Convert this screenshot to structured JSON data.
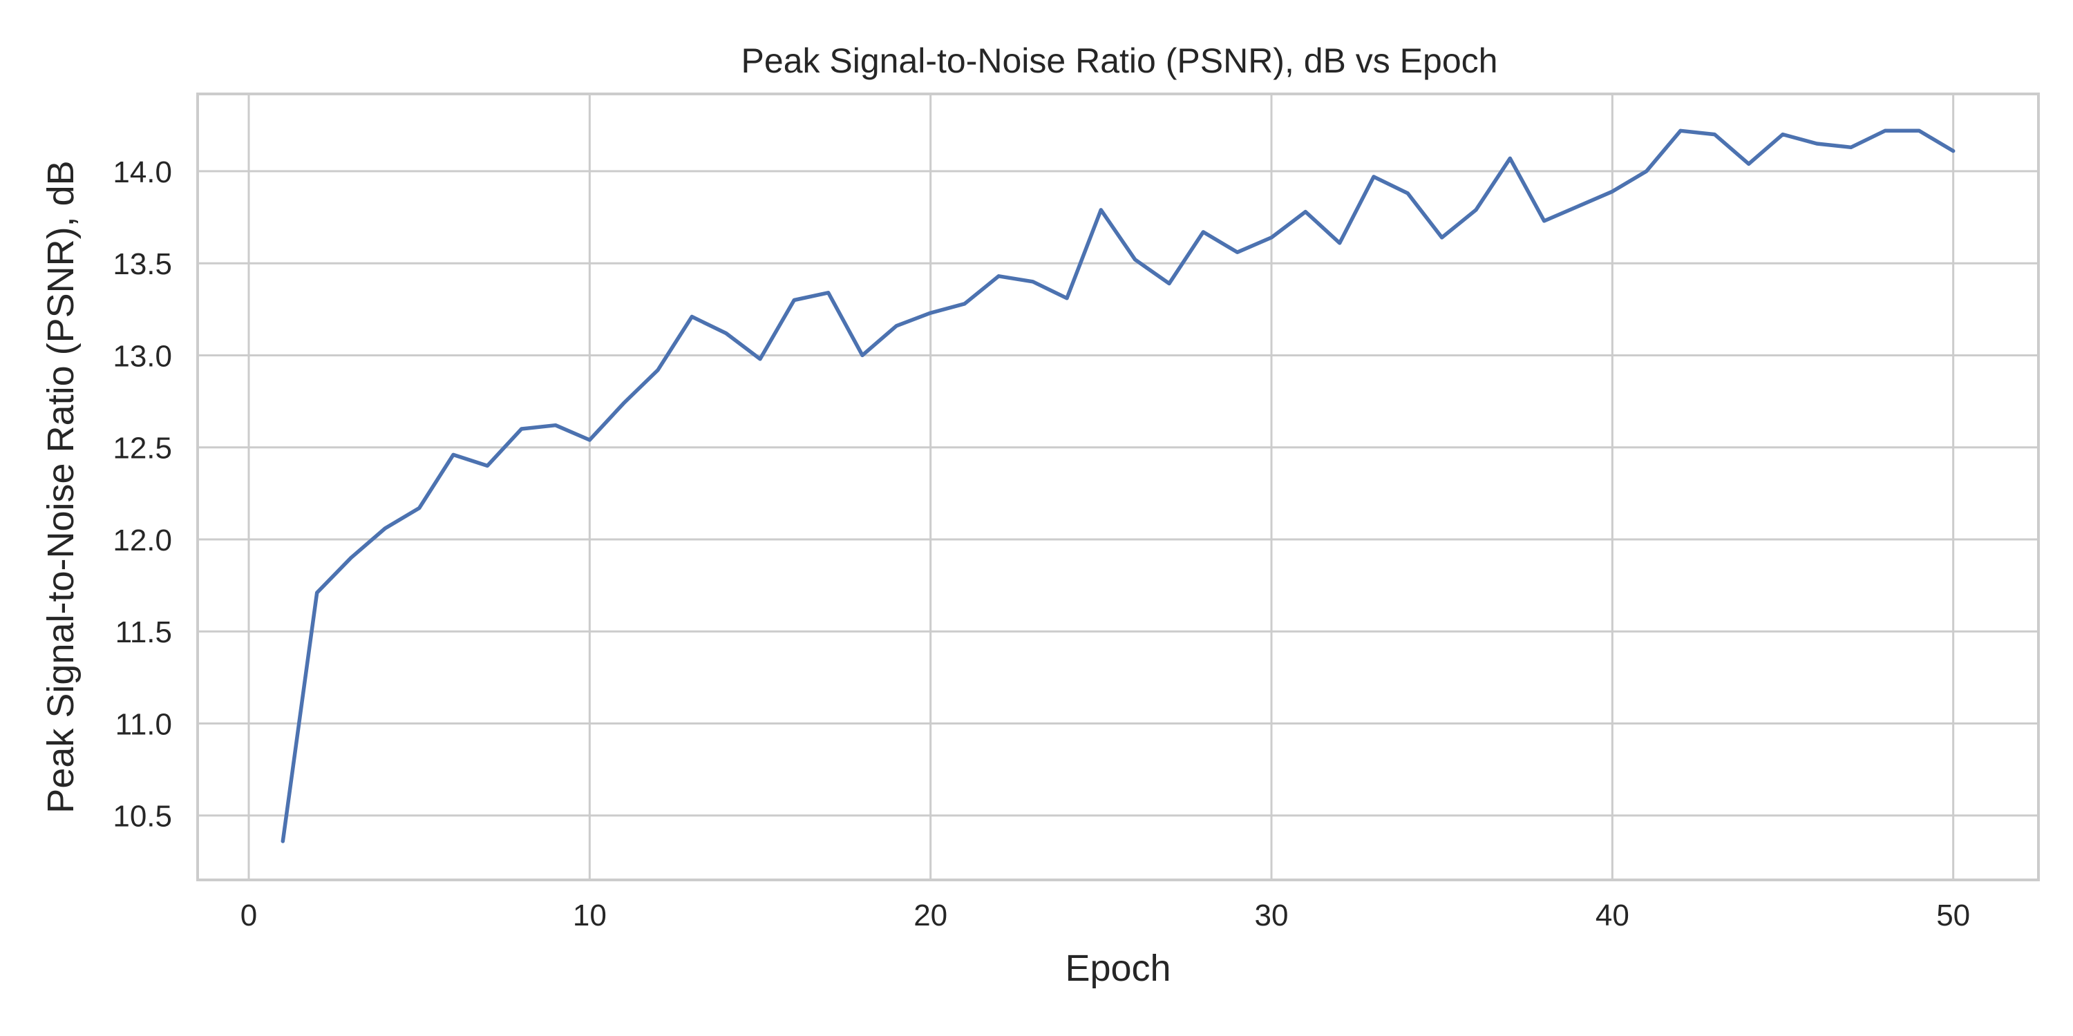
{
  "chart_data": {
    "type": "line",
    "title": "Peak Signal-to-Noise Ratio (PSNR), dB vs Epoch",
    "xlabel": "Epoch",
    "ylabel": "Peak Signal-to-Noise Ratio (PSNR), dB",
    "xlim": [
      -1.5,
      52.5
    ],
    "ylim": [
      10.15,
      14.42
    ],
    "xticks": [
      0,
      10,
      20,
      30,
      40,
      50
    ],
    "yticks": [
      10.5,
      11.0,
      11.5,
      12.0,
      12.5,
      13.0,
      13.5,
      14.0
    ],
    "ytick_labels": [
      "10.5",
      "11.0",
      "11.5",
      "12.0",
      "12.5",
      "13.0",
      "13.5",
      "14.0"
    ],
    "grid": true,
    "series": [
      {
        "color": "#4c72b0",
        "x": [
          1,
          2,
          3,
          4,
          5,
          6,
          7,
          8,
          9,
          10,
          11,
          12,
          13,
          14,
          15,
          16,
          17,
          18,
          19,
          20,
          21,
          22,
          23,
          24,
          25,
          26,
          27,
          28,
          29,
          30,
          31,
          32,
          33,
          34,
          35,
          36,
          37,
          38,
          39,
          40,
          41,
          42,
          43,
          44,
          45,
          46,
          47,
          48,
          49,
          50
        ],
        "y": [
          10.36,
          11.71,
          11.9,
          12.06,
          12.17,
          12.46,
          12.4,
          12.6,
          12.62,
          12.54,
          12.74,
          12.92,
          13.21,
          13.12,
          12.98,
          13.3,
          13.34,
          13.0,
          13.16,
          13.23,
          13.28,
          13.43,
          13.4,
          13.31,
          13.79,
          13.52,
          13.39,
          13.67,
          13.56,
          13.64,
          13.78,
          13.61,
          13.97,
          13.88,
          13.64,
          13.79,
          14.07,
          13.73,
          13.81,
          13.89,
          14.0,
          14.22,
          14.2,
          14.04,
          14.2,
          14.15,
          14.13,
          14.22,
          14.22,
          14.11
        ]
      }
    ]
  }
}
